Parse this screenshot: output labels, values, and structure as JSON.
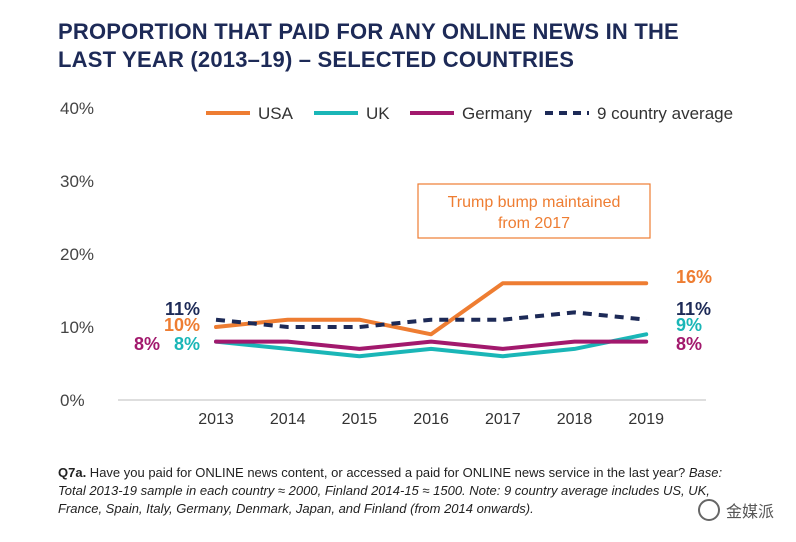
{
  "title_line1": "PROPORTION THAT PAID FOR ANY ONLINE NEWS IN THE",
  "title_line2": "LAST YEAR (2013–19) – SELECTED COUNTRIES",
  "chart_data": {
    "type": "line",
    "x": [
      "2013",
      "2014",
      "2015",
      "2016",
      "2017",
      "2018",
      "2019"
    ],
    "ylim": [
      0,
      40
    ],
    "yticks": [
      "0%",
      "10%",
      "20%",
      "30%",
      "40%"
    ],
    "grid": false,
    "legend_position": "top",
    "series": [
      {
        "name": "USA",
        "color": "#ee7d32",
        "dash": false,
        "values": [
          10,
          11,
          11,
          9,
          16,
          16,
          16
        ],
        "start_label": "10%",
        "end_label": "16%"
      },
      {
        "name": "UK",
        "color": "#1ab6b7",
        "dash": false,
        "values": [
          8,
          7,
          6,
          7,
          6,
          7,
          9
        ],
        "start_label": "8%",
        "end_label": "9%"
      },
      {
        "name": "Germany",
        "color": "#a2196d",
        "dash": false,
        "values": [
          8,
          8,
          7,
          8,
          7,
          8,
          8
        ],
        "start_label": "8%",
        "end_label": "8%"
      },
      {
        "name": "9 country average",
        "color": "#1d2a57",
        "dash": true,
        "values": [
          11,
          10,
          10,
          11,
          11,
          12,
          11
        ],
        "start_label": "11%",
        "end_label": "11%"
      }
    ],
    "annotation": [
      "Trump bump maintained",
      "from 2017"
    ]
  },
  "footnote": {
    "question_id": "Q7a.",
    "question_text": " Have you paid for ONLINE news content, or accessed a paid for ONLINE news service in the last year? ",
    "base_text": "Base: Total 2013-19 sample in each country ≈ 2000, Finland 2014-15 ≈ 1500. Note: 9 country average includes US, UK, France, Spain, Italy, Germany, Denmark, Japan, and Finland (from 2014 onwards)."
  },
  "watermark": {
    "text": "金媒派",
    "icon": "wechat-logo-icon"
  }
}
